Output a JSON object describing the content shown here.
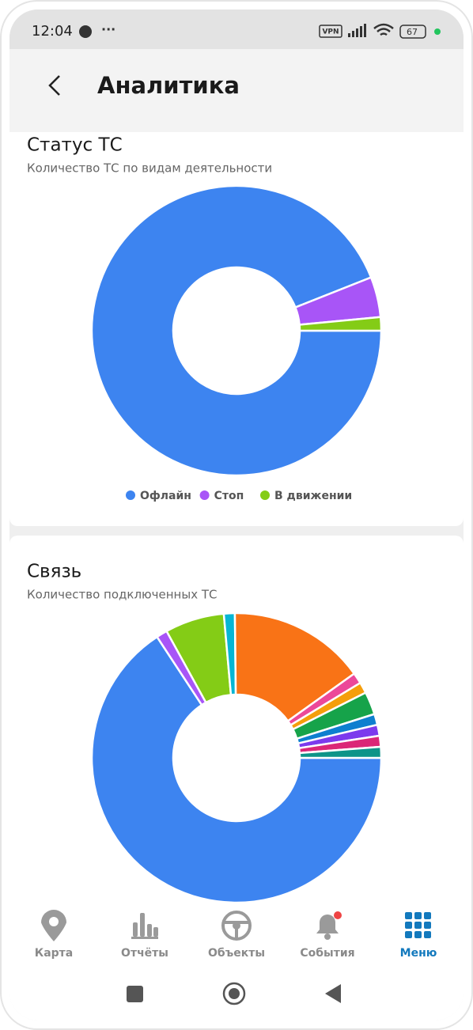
{
  "status_bar": {
    "time": "12:04",
    "vpn": "VPN",
    "battery": "67"
  },
  "header": {
    "title": "Аналитика"
  },
  "chart_data": [
    {
      "type": "donut",
      "title": "Статус ТС",
      "subtitle": "Количество ТС по видам деятельности",
      "categories": [
        "Офлайн",
        "Стоп",
        "В движении"
      ],
      "values": [
        94,
        4.5,
        1.5
      ],
      "colors": [
        "#3d84f0",
        "#a855f7",
        "#84cc16"
      ]
    },
    {
      "type": "donut",
      "title": "Связь",
      "subtitle": "Количество подключенных ТС",
      "values": [
        64.5,
        1.2,
        6.5,
        1.2,
        15,
        1.2,
        1.2,
        2.5,
        1.2,
        1.2,
        1.2,
        1.2
      ],
      "colors": [
        "#3d84f0",
        "#a855f7",
        "#84cc16",
        "#06b6d4",
        "#f97316",
        "#ec4899",
        "#f59e0b",
        "#16a34a",
        "#0e7fcf",
        "#7c3aed",
        "#db2777",
        "#0d9488"
      ]
    }
  ],
  "nav": {
    "items": [
      "Карта",
      "Отчёты",
      "Объекты",
      "События",
      "Меню"
    ],
    "active": 4
  }
}
